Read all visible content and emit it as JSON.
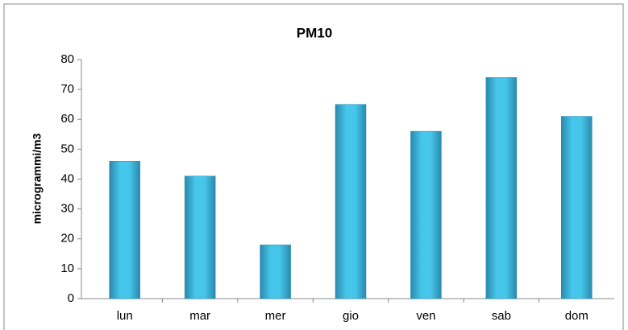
{
  "chart_data": {
    "type": "bar",
    "title": "PM10",
    "y_label": "microgrammi/m3",
    "categories": [
      "lun",
      "mar",
      "mer",
      "gio",
      "ven",
      "sab",
      "dom"
    ],
    "values": [
      46,
      41,
      18,
      65,
      56,
      74,
      61
    ],
    "color": "#3bbde0",
    "ylim": [
      0,
      80
    ],
    "yticks": [
      0,
      10,
      20,
      30,
      40,
      50,
      60,
      70,
      80
    ],
    "grid": false
  }
}
